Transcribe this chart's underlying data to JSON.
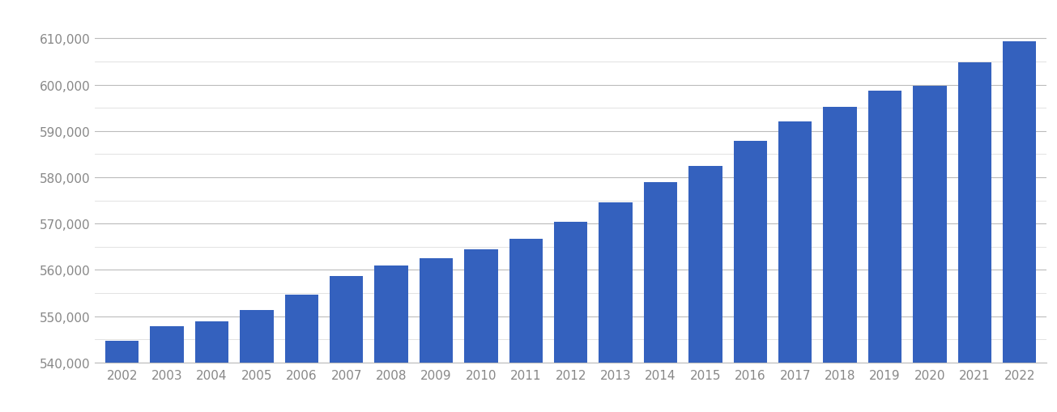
{
  "years": [
    2002,
    2003,
    2004,
    2005,
    2006,
    2007,
    2008,
    2009,
    2010,
    2011,
    2012,
    2013,
    2014,
    2015,
    2016,
    2017,
    2018,
    2019,
    2020,
    2021,
    2022
  ],
  "values": [
    544700,
    547800,
    548900,
    551300,
    554700,
    558600,
    560900,
    562500,
    564400,
    566700,
    570400,
    574500,
    578900,
    582500,
    587900,
    592000,
    595200,
    598700,
    599800,
    604800,
    609400
  ],
  "bar_color": "#3461be",
  "ylim_min": 540000,
  "ylim_max": 614000,
  "bar_bottom": 540000,
  "ytick_major": [
    540000,
    550000,
    560000,
    570000,
    580000,
    590000,
    600000,
    610000
  ],
  "ytick_minor_step": 5000,
  "background_color": "#ffffff",
  "grid_color_major": "#bbbbbb",
  "grid_color_minor": "#dddddd",
  "tick_label_color": "#888888",
  "tick_fontsize": 11,
  "bar_width": 0.75
}
